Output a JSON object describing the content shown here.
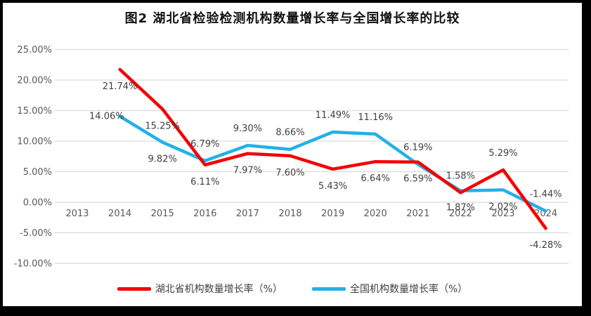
{
  "figure": {
    "title": "图2  湖北省检验检测机构数量增长率与全国增长率的比较"
  },
  "chart_data": {
    "type": "line",
    "title": "图2  湖北省检验检测机构数量增长率与全国增长率的比较",
    "categories": [
      "2013",
      "2014",
      "2015",
      "2016",
      "2017",
      "2018",
      "2019",
      "2020",
      "2021",
      "2022",
      "2023",
      "2024"
    ],
    "series": [
      {
        "name": "湖北省机构数量增长率（%）",
        "color": "#f40000",
        "values": [
          null,
          21.74,
          15.25,
          6.11,
          7.97,
          7.6,
          5.43,
          6.64,
          6.59,
          1.58,
          5.29,
          -4.28
        ],
        "labels": [
          "",
          "21.74%",
          "15.25%",
          "6.11%",
          "7.97%",
          "7.60%",
          "5.43%",
          "6.64%",
          "6.59%",
          "1.58%",
          "5.29%",
          "-4.28%"
        ],
        "label_pos": [
          "",
          "below",
          "below",
          "below",
          "below",
          "below",
          "below",
          "below",
          "below",
          "above",
          "above",
          "below"
        ]
      },
      {
        "name": "全国机构数量增长率（%）",
        "color": "#23b0e8",
        "values": [
          null,
          14.06,
          9.82,
          6.79,
          9.3,
          8.66,
          11.49,
          11.16,
          6.19,
          1.87,
          2.02,
          -1.44
        ],
        "labels": [
          "",
          "14.06%",
          "9.82%",
          "6.79%",
          "9.30%",
          "8.66%",
          "11.49%",
          "11.16%",
          "6.19%",
          "1.87%",
          "2.02%",
          "-1.44%"
        ],
        "label_pos": [
          "",
          "left",
          "below",
          "above",
          "above",
          "above",
          "above",
          "above",
          "above",
          "below",
          "below",
          "above"
        ]
      }
    ],
    "y_axis": {
      "min": -10,
      "max": 25,
      "step": 5,
      "tick_labels": [
        "25.00%",
        "20.00%",
        "15.00%",
        "10.00%",
        "5.00%",
        "0.00%",
        "-5.00%",
        "-10.00%"
      ]
    },
    "grid": true,
    "legend_position": "bottom",
    "colors": {
      "gridline": "#dadada",
      "axis_text": "#595959",
      "data_label_text": "#404040",
      "frame": "#000000"
    }
  },
  "legend": {
    "items": [
      {
        "label": "湖北省机构数量增长率（%）"
      },
      {
        "label": "全国机构数量增长率（%）"
      }
    ]
  }
}
